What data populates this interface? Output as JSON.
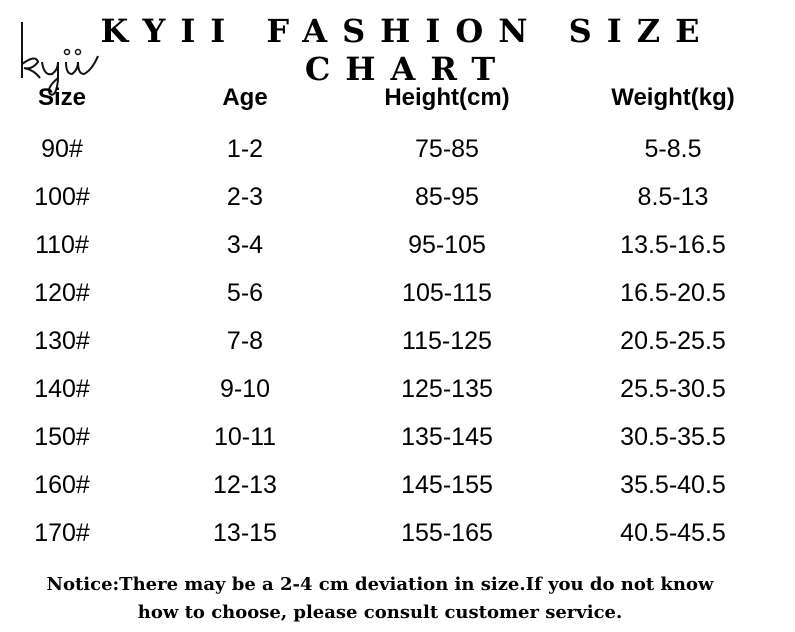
{
  "title": "KYII FASHION SIZE CHART",
  "logo_text": "kyii",
  "columns": [
    "Size",
    "Age",
    "Height(cm)",
    "Weight(kg)"
  ],
  "rows": [
    [
      "90#",
      "1-2",
      "75-85",
      "5-8.5"
    ],
    [
      "100#",
      "2-3",
      "85-95",
      "8.5-13"
    ],
    [
      "110#",
      "3-4",
      "95-105",
      "13.5-16.5"
    ],
    [
      "120#",
      "5-6",
      "105-115",
      "16.5-20.5"
    ],
    [
      "130#",
      "7-8",
      "115-125",
      "20.5-25.5"
    ],
    [
      "140#",
      "9-10",
      "125-135",
      "25.5-30.5"
    ],
    [
      "150#",
      "10-11",
      "135-145",
      "30.5-35.5"
    ],
    [
      "160#",
      "12-13",
      "145-155",
      "35.5-40.5"
    ],
    [
      "170#",
      "13-15",
      "155-165",
      "40.5-45.5"
    ]
  ],
  "notice": {
    "line1": "Notice:There may be a 2-4 cm deviation in size.If you do not know",
    "line2": "how to choose, please consult customer service."
  }
}
